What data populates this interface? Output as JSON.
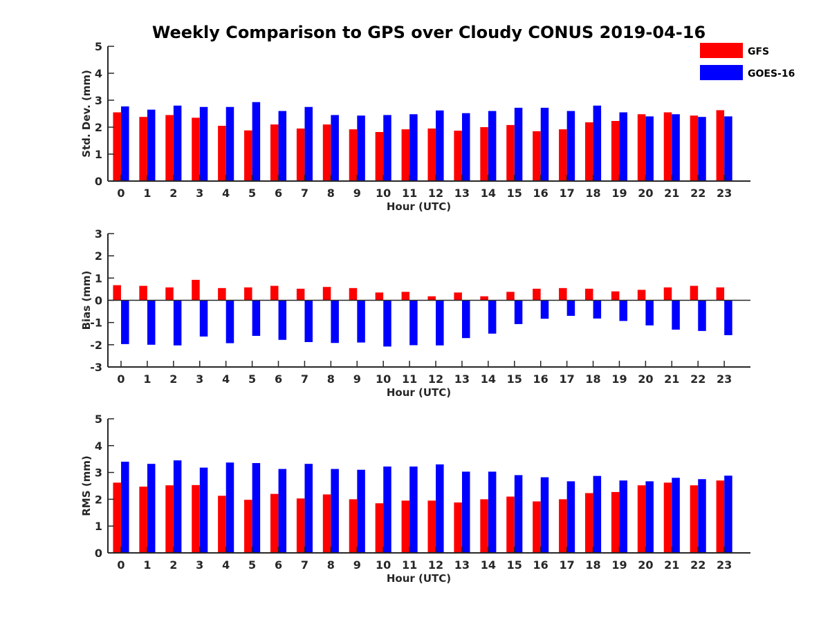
{
  "figure": {
    "title": "Weekly Comparison to GPS over Cloudy CONUS 2019-04-16"
  },
  "legend": {
    "items": [
      {
        "label": "GFS",
        "color": "#ff0000"
      },
      {
        "label": "GOES-16",
        "color": "#0000ff"
      }
    ],
    "placement": "top-right"
  },
  "chart_data": [
    {
      "type": "bar",
      "title": "",
      "xlabel": "Hour (UTC)",
      "ylabel": "Std. Dev. (mm)",
      "ylim": [
        0,
        5
      ],
      "yticks": [
        0,
        1,
        2,
        3,
        4,
        5
      ],
      "categories": [
        "0",
        "1",
        "2",
        "3",
        "4",
        "5",
        "6",
        "7",
        "8",
        "9",
        "10",
        "11",
        "12",
        "13",
        "14",
        "15",
        "16",
        "17",
        "18",
        "19",
        "20",
        "21",
        "22",
        "23"
      ],
      "series": [
        {
          "name": "GFS",
          "color": "#ff0000",
          "values": [
            2.55,
            2.38,
            2.45,
            2.35,
            2.05,
            1.88,
            2.1,
            1.95,
            2.1,
            1.92,
            1.82,
            1.92,
            1.95,
            1.87,
            2.0,
            2.08,
            1.85,
            1.92,
            2.18,
            2.23,
            2.48,
            2.55,
            2.43,
            2.63
          ]
        },
        {
          "name": "GOES-16",
          "color": "#0000ff",
          "values": [
            2.77,
            2.65,
            2.8,
            2.75,
            2.75,
            2.93,
            2.6,
            2.75,
            2.45,
            2.43,
            2.45,
            2.48,
            2.62,
            2.52,
            2.6,
            2.72,
            2.72,
            2.6,
            2.8,
            2.55,
            2.4,
            2.48,
            2.38,
            2.4
          ]
        }
      ]
    },
    {
      "type": "bar",
      "title": "",
      "xlabel": "Hour (UTC)",
      "ylabel": "Bias (mm)",
      "ylim": [
        -3,
        3
      ],
      "yticks": [
        -3,
        -2,
        -1,
        0,
        1,
        2,
        3
      ],
      "categories": [
        "0",
        "1",
        "2",
        "3",
        "4",
        "5",
        "6",
        "7",
        "8",
        "9",
        "10",
        "11",
        "12",
        "13",
        "14",
        "15",
        "16",
        "17",
        "18",
        "19",
        "20",
        "21",
        "22",
        "23"
      ],
      "series": [
        {
          "name": "GFS",
          "color": "#ff0000",
          "values": [
            0.68,
            0.65,
            0.58,
            0.92,
            0.55,
            0.58,
            0.65,
            0.52,
            0.6,
            0.55,
            0.35,
            0.38,
            0.18,
            0.35,
            0.18,
            0.38,
            0.52,
            0.55,
            0.52,
            0.4,
            0.47,
            0.58,
            0.65,
            0.58
          ]
        },
        {
          "name": "GOES-16",
          "color": "#0000ff",
          "values": [
            -1.97,
            -2.0,
            -2.03,
            -1.63,
            -1.93,
            -1.6,
            -1.78,
            -1.88,
            -1.92,
            -1.9,
            -2.08,
            -2.02,
            -2.03,
            -1.7,
            -1.5,
            -1.07,
            -0.83,
            -0.7,
            -0.82,
            -0.93,
            -1.13,
            -1.32,
            -1.38,
            -1.57
          ]
        }
      ]
    },
    {
      "type": "bar",
      "title": "",
      "xlabel": "Hour (UTC)",
      "ylabel": "RMS (mm)",
      "ylim": [
        0,
        5
      ],
      "yticks": [
        0,
        1,
        2,
        3,
        4,
        5
      ],
      "categories": [
        "0",
        "1",
        "2",
        "3",
        "4",
        "5",
        "6",
        "7",
        "8",
        "9",
        "10",
        "11",
        "12",
        "13",
        "14",
        "15",
        "16",
        "17",
        "18",
        "19",
        "20",
        "21",
        "22",
        "23"
      ],
      "series": [
        {
          "name": "GFS",
          "color": "#ff0000",
          "values": [
            2.62,
            2.47,
            2.52,
            2.53,
            2.13,
            1.98,
            2.2,
            2.03,
            2.18,
            2.0,
            1.85,
            1.95,
            1.95,
            1.88,
            2.0,
            2.1,
            1.92,
            2.0,
            2.23,
            2.27,
            2.52,
            2.62,
            2.52,
            2.7
          ]
        },
        {
          "name": "GOES-16",
          "color": "#0000ff",
          "values": [
            3.4,
            3.32,
            3.45,
            3.18,
            3.37,
            3.35,
            3.13,
            3.32,
            3.13,
            3.1,
            3.22,
            3.22,
            3.3,
            3.03,
            3.03,
            2.9,
            2.82,
            2.67,
            2.87,
            2.7,
            2.67,
            2.8,
            2.75,
            2.88
          ]
        }
      ]
    }
  ]
}
